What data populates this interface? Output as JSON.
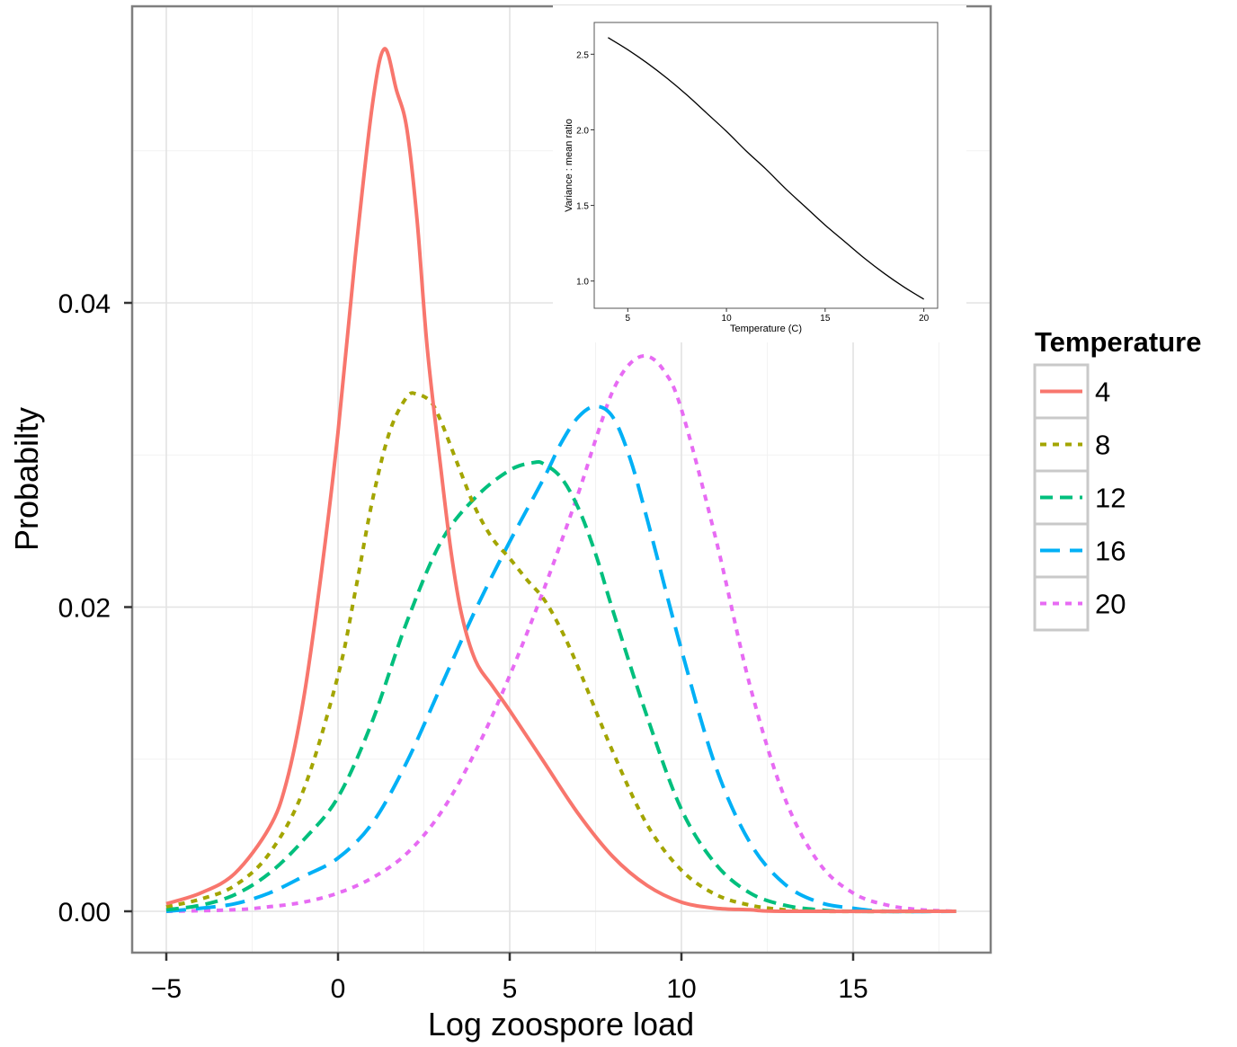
{
  "chart_data": [
    {
      "type": "line",
      "xlabel": "Log zoospore load",
      "ylabel": "Probabilty",
      "xlim": [
        -5,
        18
      ],
      "ylim": [
        0,
        0.0565
      ],
      "x_ticks": [
        -5,
        0,
        5,
        10,
        15
      ],
      "x_tick_labels": [
        "−5",
        "0",
        "5",
        "10",
        "15"
      ],
      "y_ticks": [
        0,
        0.02,
        0.04
      ],
      "y_tick_labels": [
        "0.00",
        "0.02",
        "0.04"
      ],
      "grid": true,
      "legend": {
        "title": "Temperature",
        "placement": "right"
      },
      "series": [
        {
          "name": "4",
          "color": "#F8766D",
          "dash": "solid",
          "points": [
            [
              -5,
              0.0005
            ],
            [
              -4,
              0.0012
            ],
            [
              -3,
              0.0025
            ],
            [
              -2,
              0.0055
            ],
            [
              -1.5,
              0.0085
            ],
            [
              -1,
              0.014
            ],
            [
              -0.5,
              0.022
            ],
            [
              0,
              0.0315
            ],
            [
              0.5,
              0.043
            ],
            [
              1.0,
              0.053
            ],
            [
              1.35,
              0.0567
            ],
            [
              1.7,
              0.054
            ],
            [
              2.0,
              0.0515
            ],
            [
              2.3,
              0.0455
            ],
            [
              2.6,
              0.037
            ],
            [
              3.0,
              0.029
            ],
            [
              3.3,
              0.0235
            ],
            [
              3.6,
              0.0195
            ],
            [
              4.0,
              0.0165
            ],
            [
              4.5,
              0.0148
            ],
            [
              5,
              0.0132
            ],
            [
              6,
              0.0098
            ],
            [
              7,
              0.0064
            ],
            [
              8,
              0.0036
            ],
            [
              9,
              0.0017
            ],
            [
              10,
              0.0006
            ],
            [
              11,
              0.0002
            ],
            [
              12,
              0.0001
            ],
            [
              13,
              0.0
            ],
            [
              18,
              0.0
            ]
          ]
        },
        {
          "name": "8",
          "color": "#A3A500",
          "dash": "dotted",
          "points": [
            [
              -5,
              0.0003
            ],
            [
              -4,
              0.0008
            ],
            [
              -3,
              0.0017
            ],
            [
              -2,
              0.0038
            ],
            [
              -1,
              0.008
            ],
            [
              0,
              0.0155
            ],
            [
              0.5,
              0.021
            ],
            [
              1.0,
              0.027
            ],
            [
              1.5,
              0.0315
            ],
            [
              2.0,
              0.0338
            ],
            [
              2.3,
              0.034
            ],
            [
              2.7,
              0.0335
            ],
            [
              3.0,
              0.0322
            ],
            [
              3.5,
              0.0293
            ],
            [
              4.0,
              0.0265
            ],
            [
              4.5,
              0.0245
            ],
            [
              5.0,
              0.0232
            ],
            [
              5.5,
              0.0218
            ],
            [
              6.0,
              0.0205
            ],
            [
              6.5,
              0.0185
            ],
            [
              7.0,
              0.016
            ],
            [
              8.0,
              0.0105
            ],
            [
              9.0,
              0.0057
            ],
            [
              10.0,
              0.0027
            ],
            [
              11.0,
              0.0011
            ],
            [
              12.0,
              0.0004
            ],
            [
              13.0,
              0.0001
            ],
            [
              14.0,
              0.0
            ],
            [
              18,
              0.0
            ]
          ]
        },
        {
          "name": "12",
          "color": "#00BF7D",
          "dash": "dashed",
          "points": [
            [
              -5,
              0.0001
            ],
            [
              -4,
              0.0004
            ],
            [
              -3,
              0.0011
            ],
            [
              -2,
              0.0025
            ],
            [
              -1,
              0.0047
            ],
            [
              0,
              0.0075
            ],
            [
              1,
              0.0125
            ],
            [
              2,
              0.019
            ],
            [
              3,
              0.0243
            ],
            [
              4,
              0.0272
            ],
            [
              5,
              0.029
            ],
            [
              5.7,
              0.0295
            ],
            [
              6.0,
              0.0294
            ],
            [
              6.5,
              0.0285
            ],
            [
              7.0,
              0.0265
            ],
            [
              7.5,
              0.0235
            ],
            [
              8.0,
              0.0198
            ],
            [
              9.0,
              0.0128
            ],
            [
              10.0,
              0.0067
            ],
            [
              11.0,
              0.0031
            ],
            [
              12.0,
              0.0012
            ],
            [
              13.0,
              0.0004
            ],
            [
              14.0,
              0.0001
            ],
            [
              15,
              0.0
            ],
            [
              18,
              0.0
            ]
          ]
        },
        {
          "name": "16",
          "color": "#00B0F6",
          "dash": "longdash",
          "points": [
            [
              -5,
              0.0
            ],
            [
              -4,
              0.0002
            ],
            [
              -3,
              0.0005
            ],
            [
              -2,
              0.0012
            ],
            [
              -1,
              0.0023
            ],
            [
              0,
              0.0035
            ],
            [
              1,
              0.0058
            ],
            [
              2,
              0.0098
            ],
            [
              3,
              0.0148
            ],
            [
              4,
              0.0198
            ],
            [
              5,
              0.0243
            ],
            [
              6,
              0.0285
            ],
            [
              6.5,
              0.0308
            ],
            [
              7.0,
              0.0325
            ],
            [
              7.5,
              0.0332
            ],
            [
              8.0,
              0.0325
            ],
            [
              8.5,
              0.0298
            ],
            [
              9.0,
              0.0258
            ],
            [
              10.0,
              0.0172
            ],
            [
              11.0,
              0.0095
            ],
            [
              12.0,
              0.0045
            ],
            [
              13.0,
              0.0018
            ],
            [
              14.0,
              0.0006
            ],
            [
              15.0,
              0.0002
            ],
            [
              16.0,
              0.0
            ],
            [
              18,
              0.0
            ]
          ]
        },
        {
          "name": "20",
          "color": "#E76BF3",
          "dash": "dotted",
          "points": [
            [
              -5,
              0.0
            ],
            [
              -3,
              0.0001
            ],
            [
              -2,
              0.0003
            ],
            [
              -1,
              0.0006
            ],
            [
              0,
              0.0012
            ],
            [
              1,
              0.0022
            ],
            [
              2,
              0.0038
            ],
            [
              3,
              0.0065
            ],
            [
              4,
              0.0105
            ],
            [
              5,
              0.0155
            ],
            [
              6,
              0.0212
            ],
            [
              7,
              0.0275
            ],
            [
              7.5,
              0.031
            ],
            [
              8,
              0.0342
            ],
            [
              8.5,
              0.036
            ],
            [
              9.0,
              0.0365
            ],
            [
              9.5,
              0.0355
            ],
            [
              10.0,
              0.033
            ],
            [
              11.0,
              0.0245
            ],
            [
              12.0,
              0.0148
            ],
            [
              13.0,
              0.0075
            ],
            [
              14.0,
              0.0032
            ],
            [
              15.0,
              0.0012
            ],
            [
              16.0,
              0.0004
            ],
            [
              17.0,
              0.0001
            ],
            [
              18,
              0.0
            ]
          ]
        }
      ]
    },
    {
      "type": "line",
      "xlabel": "Temperature (C)",
      "ylabel": "Variance : mean ratio",
      "xlim": [
        3.3,
        20.7
      ],
      "ylim": [
        0.82,
        2.71
      ],
      "x_ticks": [
        5,
        10,
        15,
        20
      ],
      "x_tick_labels": [
        "5",
        "10",
        "15",
        "20"
      ],
      "y_ticks": [
        1.0,
        1.5,
        2.0,
        2.5
      ],
      "y_tick_labels": [
        "1.0",
        "1.5",
        "2.0",
        "2.5"
      ],
      "grid": false,
      "series": [
        {
          "color": "#000000",
          "points": [
            [
              4,
              2.61
            ],
            [
              5,
              2.53
            ],
            [
              6,
              2.44
            ],
            [
              7,
              2.34
            ],
            [
              8,
              2.23
            ],
            [
              9,
              2.11
            ],
            [
              10,
              1.99
            ],
            [
              11,
              1.86
            ],
            [
              12,
              1.74
            ],
            [
              13,
              1.61
            ],
            [
              14,
              1.49
            ],
            [
              15,
              1.37
            ],
            [
              16,
              1.26
            ],
            [
              17,
              1.15
            ],
            [
              18,
              1.05
            ],
            [
              19,
              0.96
            ],
            [
              20,
              0.88
            ]
          ]
        }
      ]
    }
  ]
}
